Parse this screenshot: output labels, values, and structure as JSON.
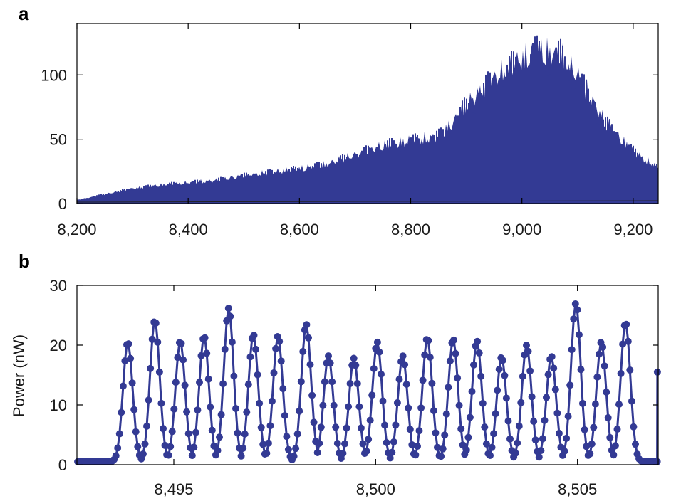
{
  "colors": {
    "series": "#333a94",
    "axis": "#000000",
    "background": "#ffffff"
  },
  "chart_data": [
    {
      "panel_label": "a",
      "type": "area",
      "title": "",
      "xlabel": "",
      "ylabel": "",
      "xlim": [
        8200,
        9245
      ],
      "ylim": [
        0,
        140
      ],
      "xticks": [
        8200,
        8400,
        8600,
        8800,
        9000,
        9200
      ],
      "xtick_labels": [
        "8,200",
        "8,400",
        "8,600",
        "8,800",
        "9,000",
        "9,200"
      ],
      "yticks": [
        0,
        50,
        100
      ],
      "ytick_labels": [
        "0",
        "50",
        "100"
      ],
      "grid": false,
      "series": [
        {
          "style": "dense oscillating fringe envelope (peak values)",
          "x": [
            8200,
            8250,
            8300,
            8350,
            8400,
            8450,
            8500,
            8550,
            8600,
            8650,
            8700,
            8750,
            8800,
            8850,
            8880,
            8900,
            8950,
            9000,
            9030,
            9070,
            9100,
            9150,
            9200,
            9245
          ],
          "y": [
            3,
            8,
            13,
            16,
            18,
            20,
            24,
            27,
            30,
            34,
            42,
            50,
            54,
            58,
            72,
            85,
            108,
            125,
            132,
            128,
            110,
            70,
            45,
            30
          ]
        }
      ]
    },
    {
      "panel_label": "b",
      "type": "line",
      "title": "",
      "xlabel": "",
      "ylabel": "Power (nW)",
      "xlim": [
        8492.6,
        8507.0
      ],
      "ylim": [
        0,
        30
      ],
      "xticks": [
        8495,
        8500,
        8505
      ],
      "xtick_labels": [
        "8,495",
        "8,500",
        "8,505"
      ],
      "yticks": [
        0,
        10,
        20,
        30
      ],
      "ytick_labels": [
        "0",
        "10",
        "20",
        "30"
      ],
      "grid": false,
      "markers": true,
      "series": [
        {
          "style": "line with circular markers, periodic fringes",
          "peak_positions": [
            8493.86,
            8494.53,
            8495.16,
            8495.75,
            8496.36,
            8496.97,
            8497.58,
            8498.28,
            8498.83,
            8499.46,
            8500.04,
            8500.67,
            8501.28,
            8501.92,
            8502.51,
            8503.12,
            8503.74,
            8504.35,
            8504.96,
            8505.59,
            8506.19
          ],
          "peak_values": [
            20.5,
            24.2,
            20.7,
            21.5,
            26.2,
            21.8,
            21.5,
            23.5,
            18.2,
            17.8,
            20.5,
            18.2,
            21.2,
            21.0,
            20.7,
            18.0,
            20.0,
            18.2,
            27.0,
            20.5,
            23.8
          ],
          "minimum_value": 0.5,
          "end_value": 15.5
        }
      ]
    }
  ]
}
